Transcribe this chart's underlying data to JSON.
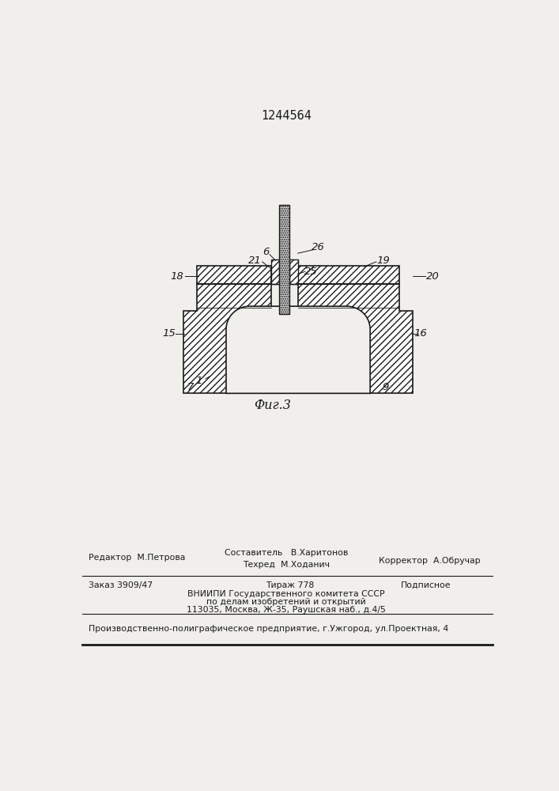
{
  "title": "1244564",
  "fig_label": "Фиг.3",
  "background_color": "#f0efec",
  "line_color": "#1a1a1a",
  "footer_row1_left": "Редактор  М.Петрова",
  "footer_row1_center1": "Составитель   В.Харитонов",
  "footer_row1_center2": "Техред  М.Ходанич",
  "footer_row1_right": "Корректор  А.Обручар",
  "footer_row2_left": "Заказ 3909/47",
  "footer_row2_center1": "Тираж 778",
  "footer_row2_center2": "ВНИИПИ Государственного комитета СССР",
  "footer_row2_center3": "по делам изобретений и открытий",
  "footer_row2_center4": "113035, Москва, Ж-35, Раушская наб., д.4/5",
  "footer_row2_right": "Подписное",
  "bottom_text": "Производственно-полиграфическое предприятие, г.Ужгород, ул.Проектная, 4"
}
